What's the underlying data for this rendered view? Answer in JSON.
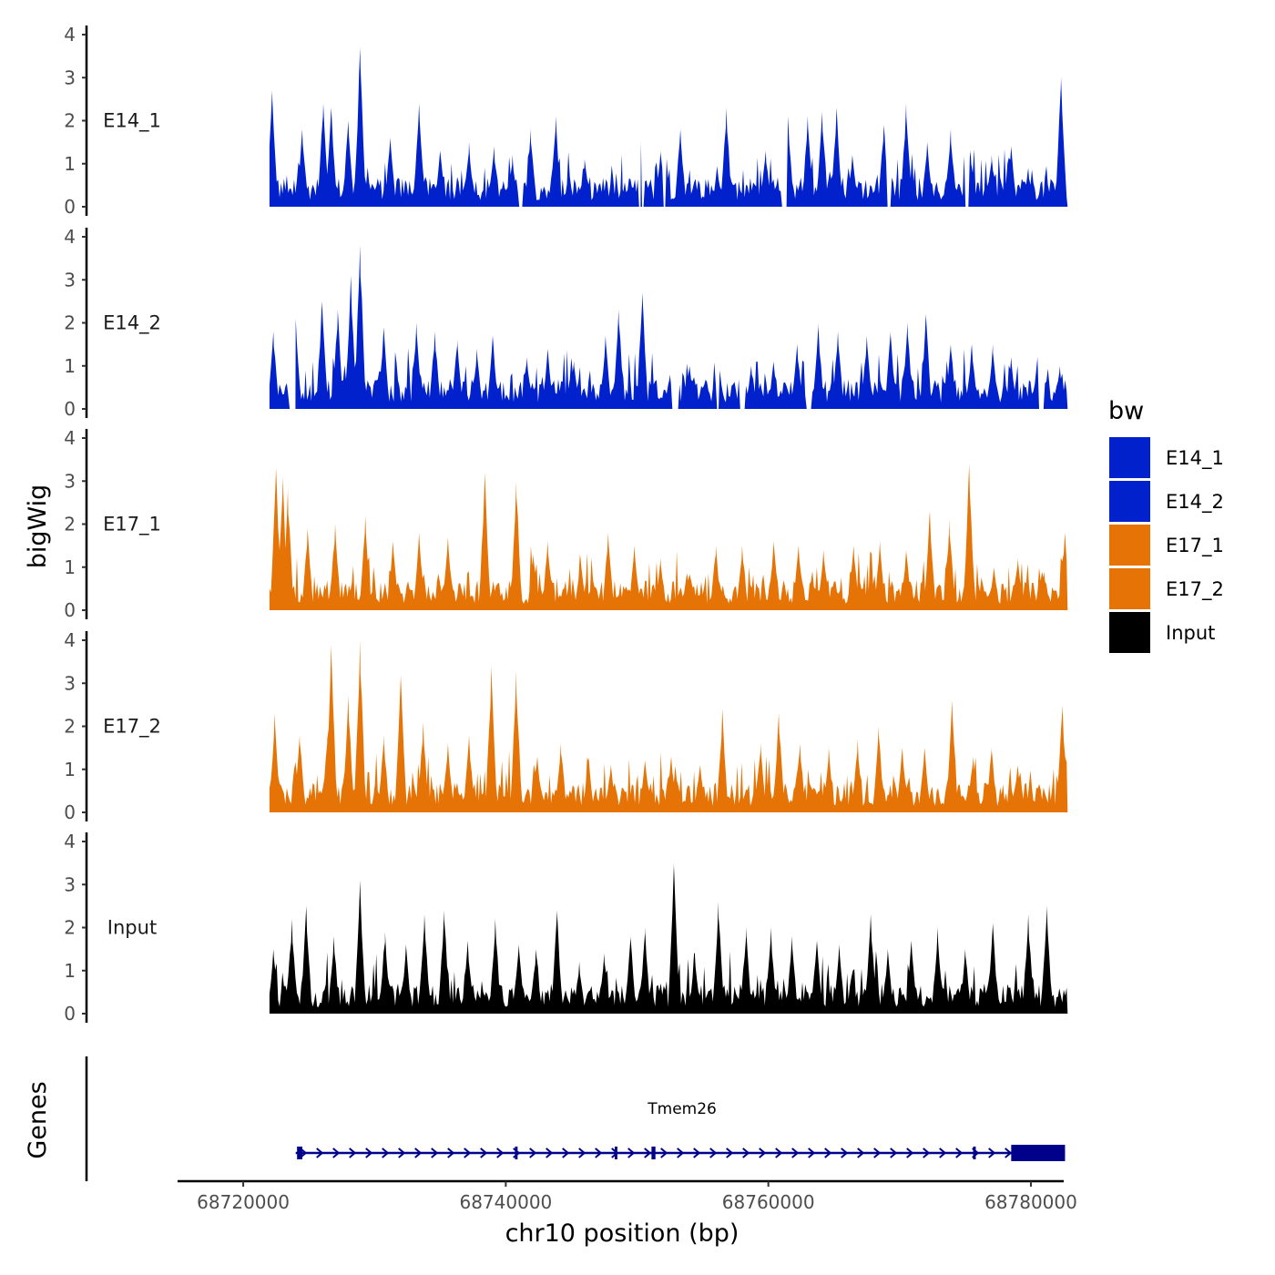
{
  "chart_data": {
    "type": "area",
    "chromosome": "chr10",
    "xlabel": "chr10 position (bp)",
    "ylabel": "bigWig",
    "genes_label": "Genes",
    "xlim": [
      68715000,
      68782500
    ],
    "x_ticks": [
      68720000,
      68740000,
      68760000,
      68780000
    ],
    "x_tick_labels": [
      "68720000",
      "68740000",
      "68760000",
      "68780000"
    ],
    "ylim": [
      0,
      4
    ],
    "y_ticks": [
      0,
      1,
      2,
      3,
      4
    ],
    "y_tick_labels": [
      "0",
      "1",
      "2",
      "3",
      "4"
    ],
    "region": [
      68722000,
      68782800
    ],
    "legend": {
      "title": "bw",
      "entries": [
        {
          "label": "E14_1",
          "color": "#0021CC"
        },
        {
          "label": "E14_2",
          "color": "#0021CC"
        },
        {
          "label": "E17_1",
          "color": "#E57305"
        },
        {
          "label": "E17_2",
          "color": "#E57305"
        },
        {
          "label": "Input",
          "color": "#000000"
        }
      ]
    },
    "series": [
      {
        "name": "E14_1",
        "color": "#0021CC",
        "peaks": [
          [
            68722200,
            2.7
          ],
          [
            68724500,
            1.8
          ],
          [
            68726100,
            2.4
          ],
          [
            68726700,
            2.3
          ],
          [
            68728000,
            2.0
          ],
          [
            68728900,
            3.7
          ],
          [
            68731200,
            1.6
          ],
          [
            68733400,
            2.4
          ],
          [
            68735000,
            1.3
          ],
          [
            68737200,
            1.5
          ],
          [
            68739100,
            1.4
          ],
          [
            68740500,
            1.2
          ],
          [
            68741900,
            1.8
          ],
          [
            68743800,
            2.1
          ],
          [
            68746000,
            1.1
          ],
          [
            68748900,
            0.4
          ],
          [
            68750300,
            1.5
          ],
          [
            68751800,
            1.3
          ],
          [
            68753300,
            1.8
          ],
          [
            68756800,
            2.3
          ],
          [
            68759800,
            1.3
          ],
          [
            68761500,
            2.1
          ],
          [
            68763000,
            2.1
          ],
          [
            68764100,
            2.2
          ],
          [
            68765200,
            2.3
          ],
          [
            68766400,
            1.2
          ],
          [
            68768800,
            1.9
          ],
          [
            68770500,
            2.4
          ],
          [
            68772100,
            1.5
          ],
          [
            68773900,
            1.8
          ],
          [
            68775400,
            1.3
          ],
          [
            68777000,
            1.2
          ],
          [
            68778500,
            1.4
          ],
          [
            68779800,
            0.9
          ],
          [
            68782300,
            3.0
          ]
        ],
        "gaps": [
          [
            68741000,
            68741300
          ],
          [
            68750100,
            68750500
          ],
          [
            68752000,
            68752200
          ],
          [
            68761000,
            68761400
          ],
          [
            68769000,
            68769300
          ],
          [
            68775000,
            68775300
          ]
        ]
      },
      {
        "name": "E14_2",
        "color": "#0021CC",
        "peaks": [
          [
            68722300,
            1.8
          ],
          [
            68724000,
            2.1
          ],
          [
            68726000,
            2.5
          ],
          [
            68727200,
            2.3
          ],
          [
            68728200,
            3.1
          ],
          [
            68728900,
            3.8
          ],
          [
            68730700,
            1.9
          ],
          [
            68733200,
            2.0
          ],
          [
            68734600,
            1.8
          ],
          [
            68736300,
            1.6
          ],
          [
            68737800,
            1.4
          ],
          [
            68739000,
            1.7
          ],
          [
            68741600,
            1.2
          ],
          [
            68743200,
            1.4
          ],
          [
            68745200,
            1.1
          ],
          [
            68747600,
            1.7
          ],
          [
            68748600,
            2.3
          ],
          [
            68750400,
            2.7
          ],
          [
            68752500,
            0.8
          ],
          [
            68754000,
            1.0
          ],
          [
            68756300,
            0.9
          ],
          [
            68758700,
            1.0
          ],
          [
            68760400,
            1.1
          ],
          [
            68762200,
            1.5
          ],
          [
            68763800,
            2.0
          ],
          [
            68765300,
            1.8
          ],
          [
            68767500,
            1.7
          ],
          [
            68769300,
            1.8
          ],
          [
            68770600,
            2.0
          ],
          [
            68772000,
            2.2
          ],
          [
            68773900,
            1.5
          ],
          [
            68775500,
            1.5
          ],
          [
            68777100,
            1.5
          ],
          [
            68778500,
            1.2
          ],
          [
            68780500,
            1.2
          ],
          [
            68782200,
            1.0
          ]
        ],
        "gaps": [
          [
            68723500,
            68724000
          ],
          [
            68752600,
            68753200
          ],
          [
            68756000,
            68756300
          ],
          [
            68757800,
            68758200
          ],
          [
            68762900,
            68763300
          ],
          [
            68780600,
            68781000
          ]
        ]
      },
      {
        "name": "E17_1",
        "color": "#E57305",
        "peaks": [
          [
            68722500,
            3.3
          ],
          [
            68723000,
            3.1
          ],
          [
            68723400,
            2.8
          ],
          [
            68724900,
            1.9
          ],
          [
            68727000,
            2.0
          ],
          [
            68729300,
            2.2
          ],
          [
            68731400,
            1.6
          ],
          [
            68733400,
            1.8
          ],
          [
            68735600,
            1.7
          ],
          [
            68738400,
            3.2
          ],
          [
            68740800,
            3.0
          ],
          [
            68742100,
            1.3
          ],
          [
            68743200,
            1.6
          ],
          [
            68745700,
            1.2
          ],
          [
            68747800,
            1.8
          ],
          [
            68749800,
            1.5
          ],
          [
            68751800,
            1.2
          ],
          [
            68753900,
            0.7
          ],
          [
            68756000,
            1.5
          ],
          [
            68758000,
            1.5
          ],
          [
            68760400,
            1.6
          ],
          [
            68762300,
            1.5
          ],
          [
            68764200,
            1.4
          ],
          [
            68766500,
            1.5
          ],
          [
            68768500,
            1.6
          ],
          [
            68770500,
            1.4
          ],
          [
            68772300,
            2.3
          ],
          [
            68773800,
            2.1
          ],
          [
            68775300,
            3.4
          ],
          [
            68777200,
            1.0
          ],
          [
            68779000,
            1.2
          ],
          [
            68781000,
            0.9
          ],
          [
            68782600,
            1.8
          ]
        ],
        "gaps": []
      },
      {
        "name": "E17_2",
        "color": "#E57305",
        "peaks": [
          [
            68722400,
            2.3
          ],
          [
            68724300,
            1.8
          ],
          [
            68726400,
            1.7
          ],
          [
            68726700,
            3.9
          ],
          [
            68728000,
            2.7
          ],
          [
            68728900,
            4.0
          ],
          [
            68730700,
            1.8
          ],
          [
            68732000,
            3.2
          ],
          [
            68733700,
            2.1
          ],
          [
            68735600,
            1.6
          ],
          [
            68737200,
            1.8
          ],
          [
            68738900,
            3.4
          ],
          [
            68740800,
            3.3
          ],
          [
            68742400,
            1.3
          ],
          [
            68744200,
            1.6
          ],
          [
            68746300,
            1.2
          ],
          [
            68748000,
            1.1
          ],
          [
            68750600,
            1.2
          ],
          [
            68752600,
            1.3
          ],
          [
            68754800,
            1.1
          ],
          [
            68756500,
            2.4
          ],
          [
            68759400,
            1.6
          ],
          [
            68760800,
            2.3
          ],
          [
            68762400,
            1.6
          ],
          [
            68764600,
            1.5
          ],
          [
            68766800,
            1.7
          ],
          [
            68768400,
            2.0
          ],
          [
            68770200,
            1.5
          ],
          [
            68771900,
            1.5
          ],
          [
            68774000,
            2.6
          ],
          [
            68775600,
            1.3
          ],
          [
            68777000,
            1.5
          ],
          [
            68779000,
            1.1
          ],
          [
            68782400,
            2.5
          ]
        ],
        "gaps": []
      },
      {
        "name": "Input",
        "color": "#000000",
        "peaks": [
          [
            68722300,
            1.5
          ],
          [
            68723700,
            2.2
          ],
          [
            68724800,
            2.5
          ],
          [
            68726900,
            1.8
          ],
          [
            68728900,
            3.1
          ],
          [
            68730800,
            1.9
          ],
          [
            68732400,
            1.6
          ],
          [
            68733800,
            2.3
          ],
          [
            68735300,
            2.4
          ],
          [
            68737100,
            1.7
          ],
          [
            68739200,
            2.2
          ],
          [
            68741000,
            1.6
          ],
          [
            68742300,
            1.5
          ],
          [
            68743900,
            2.4
          ],
          [
            68745600,
            1.2
          ],
          [
            68747500,
            1.4
          ],
          [
            68749500,
            1.8
          ],
          [
            68750600,
            2.0
          ],
          [
            68752800,
            3.5
          ],
          [
            68754400,
            1.4
          ],
          [
            68756200,
            2.6
          ],
          [
            68758300,
            2.0
          ],
          [
            68760200,
            2.0
          ],
          [
            68761800,
            1.8
          ],
          [
            68763700,
            1.7
          ],
          [
            68765400,
            1.6
          ],
          [
            68767800,
            2.3
          ],
          [
            68769100,
            1.5
          ],
          [
            68770900,
            1.7
          ],
          [
            68772900,
            2.0
          ],
          [
            68775000,
            1.5
          ],
          [
            68777100,
            2.1
          ],
          [
            68779800,
            2.3
          ],
          [
            68781200,
            2.5
          ]
        ],
        "gaps": []
      }
    ],
    "gene": {
      "name": "Tmem26",
      "strand": "+",
      "start": 68724000,
      "end": 68782600,
      "exons": [
        [
          68724100,
          68724500
        ],
        [
          68740700,
          68740900
        ],
        [
          68748300,
          68748500
        ],
        [
          68751100,
          68751400
        ],
        [
          68775600,
          68775800
        ],
        [
          68778500,
          68782600
        ]
      ],
      "color": "#00008B"
    }
  }
}
